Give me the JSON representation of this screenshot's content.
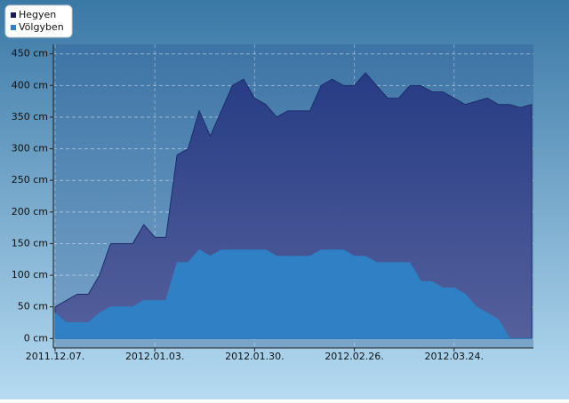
{
  "chart_data": {
    "type": "area",
    "x": [
      "2011-12-07",
      "2011-12-10",
      "2011-12-13",
      "2011-12-16",
      "2011-12-19",
      "2011-12-22",
      "2011-12-25",
      "2011-12-28",
      "2011-12-31",
      "2012-01-03",
      "2012-01-06",
      "2012-01-09",
      "2012-01-12",
      "2012-01-15",
      "2012-01-18",
      "2012-01-21",
      "2012-01-24",
      "2012-01-27",
      "2012-01-30",
      "2012-02-02",
      "2012-02-05",
      "2012-02-08",
      "2012-02-11",
      "2012-02-14",
      "2012-02-17",
      "2012-02-20",
      "2012-02-23",
      "2012-02-26",
      "2012-02-29",
      "2012-03-03",
      "2012-03-06",
      "2012-03-09",
      "2012-03-12",
      "2012-03-15",
      "2012-03-18",
      "2012-03-21",
      "2012-03-24",
      "2012-03-27",
      "2012-03-30",
      "2012-04-02",
      "2012-04-05",
      "2012-04-08",
      "2012-04-11",
      "2012-04-14"
    ],
    "series": [
      {
        "name": "Hegyen",
        "color": "#283f86",
        "values": [
          50,
          60,
          70,
          70,
          100,
          150,
          150,
          150,
          180,
          160,
          160,
          290,
          300,
          360,
          320,
          360,
          400,
          410,
          380,
          370,
          350,
          360,
          360,
          360,
          400,
          410,
          400,
          400,
          420,
          400,
          380,
          380,
          400,
          400,
          390,
          390,
          380,
          370,
          375,
          380,
          370,
          370,
          365,
          370
        ]
      },
      {
        "name": "Völgyben",
        "color": "#2f80c4",
        "values": [
          40,
          25,
          25,
          25,
          40,
          50,
          50,
          50,
          60,
          60,
          60,
          120,
          120,
          140,
          130,
          140,
          140,
          140,
          140,
          140,
          130,
          130,
          130,
          130,
          140,
          140,
          140,
          130,
          130,
          120,
          120,
          120,
          120,
          90,
          90,
          80,
          80,
          70,
          50,
          40,
          30,
          0,
          0,
          0
        ]
      }
    ],
    "xlim": [
      "2011-12-07",
      "2012-04-14"
    ],
    "xticks": [
      {
        "value": "2011-12-07",
        "label": "2011.12.07."
      },
      {
        "value": "2012-01-03",
        "label": "2012.01.03."
      },
      {
        "value": "2012-01-30",
        "label": "2012.01.30."
      },
      {
        "value": "2012-02-26",
        "label": "2012.02.26."
      },
      {
        "value": "2012-03-24",
        "label": "2012.03.24."
      }
    ],
    "ylim": [
      -15,
      465
    ],
    "yticks": [
      {
        "value": 0,
        "label": "0 cm"
      },
      {
        "value": 50,
        "label": "50 cm"
      },
      {
        "value": 100,
        "label": "100 cm"
      },
      {
        "value": 150,
        "label": "150 cm"
      },
      {
        "value": 200,
        "label": "200 cm"
      },
      {
        "value": 250,
        "label": "250 cm"
      },
      {
        "value": 300,
        "label": "300 cm"
      },
      {
        "value": 350,
        "label": "350 cm"
      },
      {
        "value": 400,
        "label": "400 cm"
      },
      {
        "value": 450,
        "label": "450 cm"
      }
    ],
    "grid": true,
    "legend": "top-left"
  }
}
